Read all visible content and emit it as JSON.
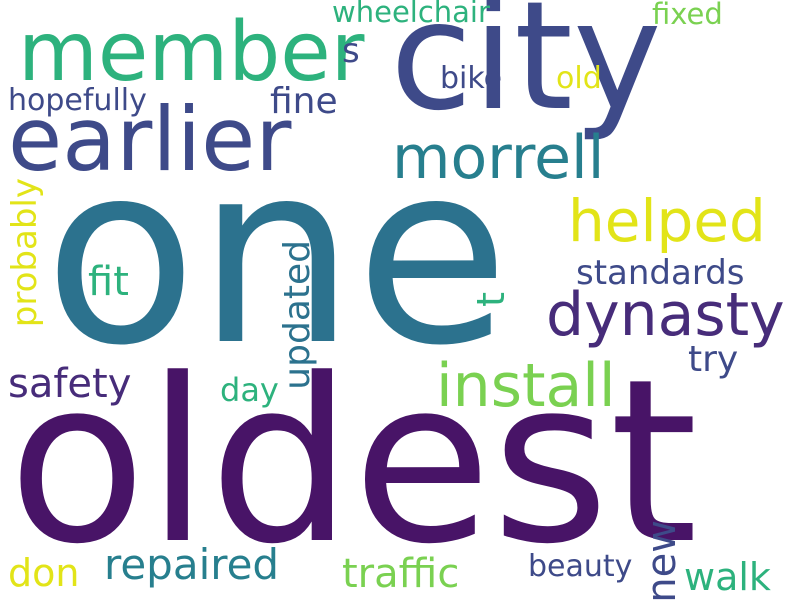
{
  "words": {
    "oldest": "oldest",
    "one": "one",
    "city": "city",
    "member": "member",
    "earlier": "earlier",
    "morrell": "morrell",
    "helped": "helped",
    "dynasty": "dynasty",
    "install": "install",
    "standards": "standards",
    "try": "try",
    "fine": "fine",
    "hopefully": "hopefully",
    "wheelchair": "wheelchair",
    "fixed": "fixed",
    "bike": "bike",
    "old": "old",
    "s": "s",
    "fit": "fit",
    "safety": "safety",
    "day": "day",
    "repaired": "repaired",
    "traffic": "traffic",
    "beauty": "beauty",
    "walk": "walk",
    "don": "don",
    "probably": "probably",
    "updated": "updated",
    "t": "t",
    "new": "new"
  },
  "colors": {
    "background": "#ffffff",
    "dark_purple": "#481467",
    "indigo": "#3E4A89",
    "teal_blue": "#2C728E",
    "teal": "#277F8E",
    "green": "#2DB27D",
    "light_green": "#7AD151",
    "yellow": "#E2E418"
  }
}
